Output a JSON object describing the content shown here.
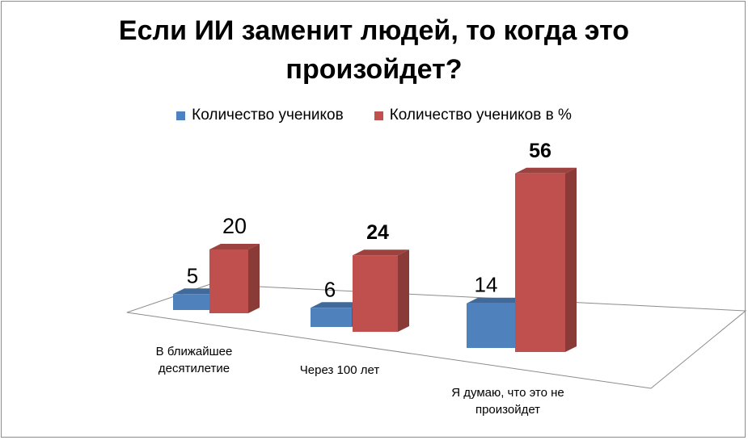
{
  "chart_data": {
    "type": "bar",
    "title_lines": [
      "Если ИИ заменит людей, то когда это",
      "произойдет?"
    ],
    "categories": [
      [
        "В ближайшее",
        "десятилетие"
      ],
      [
        "Через 100 лет"
      ],
      [
        "Я думаю, что это не",
        "произойдет"
      ]
    ],
    "series": [
      {
        "name": "Количество учеников",
        "values": [
          5,
          6,
          14
        ],
        "color": "#4f81bd"
      },
      {
        "name": "Количество учеников в %",
        "values": [
          20,
          24,
          56
        ],
        "color": "#c0504d"
      }
    ],
    "bold_labels": {
      "1": [
        false,
        true,
        true
      ]
    },
    "style": "3d-clustered-column",
    "grid": false,
    "legend_position": "top"
  }
}
